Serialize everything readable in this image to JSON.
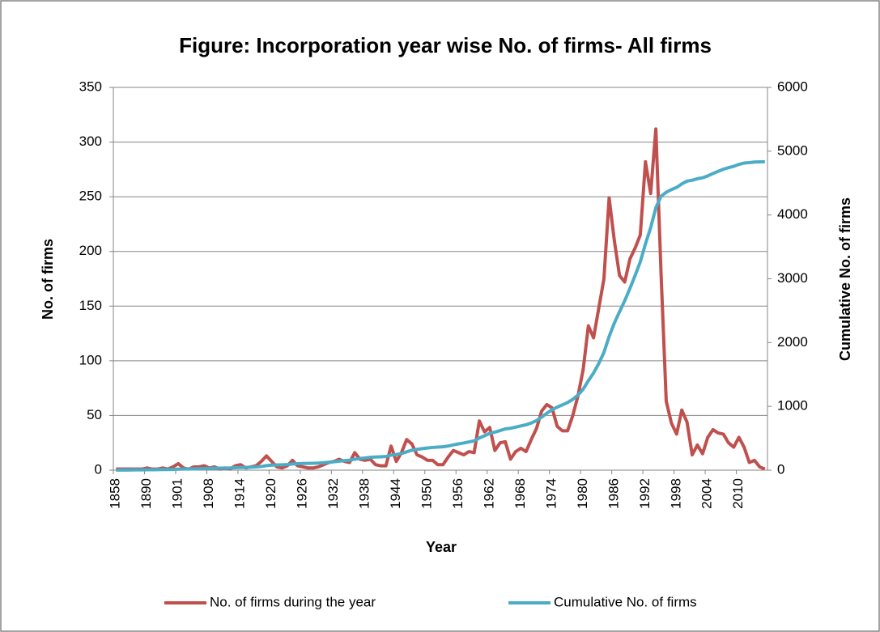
{
  "chart_data": {
    "type": "line",
    "title": "Figure: Incorporation year wise No. of firms- All firms",
    "xlabel": "Year",
    "ylabel": "No. of firms",
    "y2label": "Cumulative No. of firms",
    "categories": [
      "1858",
      null,
      null,
      null,
      null,
      null,
      "1890",
      null,
      null,
      null,
      null,
      null,
      "1901",
      null,
      null,
      null,
      null,
      null,
      "1908",
      null,
      null,
      null,
      null,
      null,
      "1914",
      null,
      null,
      null,
      null,
      null,
      "1920",
      null,
      null,
      null,
      null,
      null,
      "1926",
      null,
      null,
      null,
      null,
      null,
      "1932",
      null,
      null,
      null,
      null,
      null,
      "1938",
      null,
      null,
      null,
      null,
      null,
      "1944",
      null,
      null,
      null,
      null,
      null,
      "1950",
      null,
      null,
      null,
      null,
      null,
      "1956",
      null,
      null,
      null,
      null,
      null,
      "1962",
      null,
      null,
      null,
      null,
      null,
      "1968",
      null,
      null,
      null,
      null,
      null,
      "1974",
      null,
      null,
      null,
      null,
      null,
      "1980",
      null,
      null,
      null,
      null,
      null,
      "1986",
      null,
      null,
      null,
      null,
      null,
      "1992",
      null,
      null,
      null,
      null,
      null,
      "1998",
      null,
      null,
      null,
      null,
      null,
      "2004",
      null,
      null,
      null,
      null,
      null,
      "2010",
      null,
      null,
      null,
      null,
      null
    ],
    "ylim": [
      0,
      350
    ],
    "yticks": [
      0,
      50,
      100,
      150,
      200,
      250,
      300,
      350
    ],
    "y2lim": [
      0,
      6000
    ],
    "y2ticks": [
      0,
      1000,
      2000,
      3000,
      4000,
      5000,
      6000
    ],
    "grid": true,
    "legend": "bottom",
    "series": [
      {
        "name": "No. of firms during the year",
        "color": "#c0504d",
        "values": [
          1,
          1,
          1,
          1,
          1,
          1,
          2,
          1,
          1,
          2,
          1,
          3,
          6,
          2,
          1,
          3,
          3,
          4,
          2,
          3,
          1,
          2,
          1,
          4,
          5,
          2,
          3,
          4,
          8,
          13,
          8,
          3,
          2,
          4,
          9,
          4,
          3,
          2,
          2,
          3,
          5,
          7,
          8,
          10,
          8,
          7,
          16,
          10,
          9,
          10,
          5,
          4,
          4,
          22,
          8,
          16,
          28,
          24,
          14,
          12,
          9,
          9,
          5,
          5,
          12,
          18,
          16,
          14,
          17,
          16,
          45,
          35,
          39,
          18,
          25,
          26,
          10,
          17,
          20,
          17,
          28,
          38,
          54,
          60,
          57,
          40,
          36,
          36,
          50,
          68,
          92,
          132,
          121,
          148,
          175,
          249,
          210,
          178,
          172,
          193,
          203,
          215,
          282,
          253,
          312,
          180,
          63,
          43,
          33,
          55,
          44,
          14,
          23,
          15,
          30,
          37,
          34,
          33,
          25,
          21,
          30,
          21,
          7,
          9,
          3,
          1
        ]
      },
      {
        "name": "Cumulative No. of firms",
        "color": "#4bacc6",
        "axis": "y2",
        "values": [
          1,
          2,
          2,
          3,
          4,
          5,
          6,
          7,
          8,
          9,
          10,
          12,
          16,
          18,
          19,
          21,
          23,
          26,
          28,
          30,
          32,
          34,
          35,
          38,
          41,
          43,
          46,
          50,
          58,
          71,
          79,
          82,
          84,
          88,
          97,
          101,
          104,
          106,
          108,
          111,
          116,
          123,
          131,
          141,
          149,
          156,
          172,
          182,
          191,
          201,
          206,
          210,
          214,
          236,
          244,
          260,
          288,
          312,
          326,
          338,
          347,
          356,
          361,
          366,
          378,
          396,
          412,
          426,
          443,
          459,
          504,
          539,
          578,
          596,
          621,
          647,
          657,
          674,
          694,
          711,
          739,
          777,
          831,
          891,
          948,
          988,
          1024,
          1060,
          1110,
          1178,
          1270,
          1402,
          1523,
          1671,
          1846,
          2095,
          2305,
          2483,
          2655,
          2848,
          3051,
          3266,
          3548,
          3801,
          4113,
          4293,
          4356,
          4399,
          4432,
          4487,
          4531,
          4545,
          4568,
          4583,
          4613,
          4650,
          4684,
          4717,
          4742,
          4763,
          4793,
          4814,
          4821,
          4830,
          4833,
          4834
        ]
      }
    ]
  }
}
